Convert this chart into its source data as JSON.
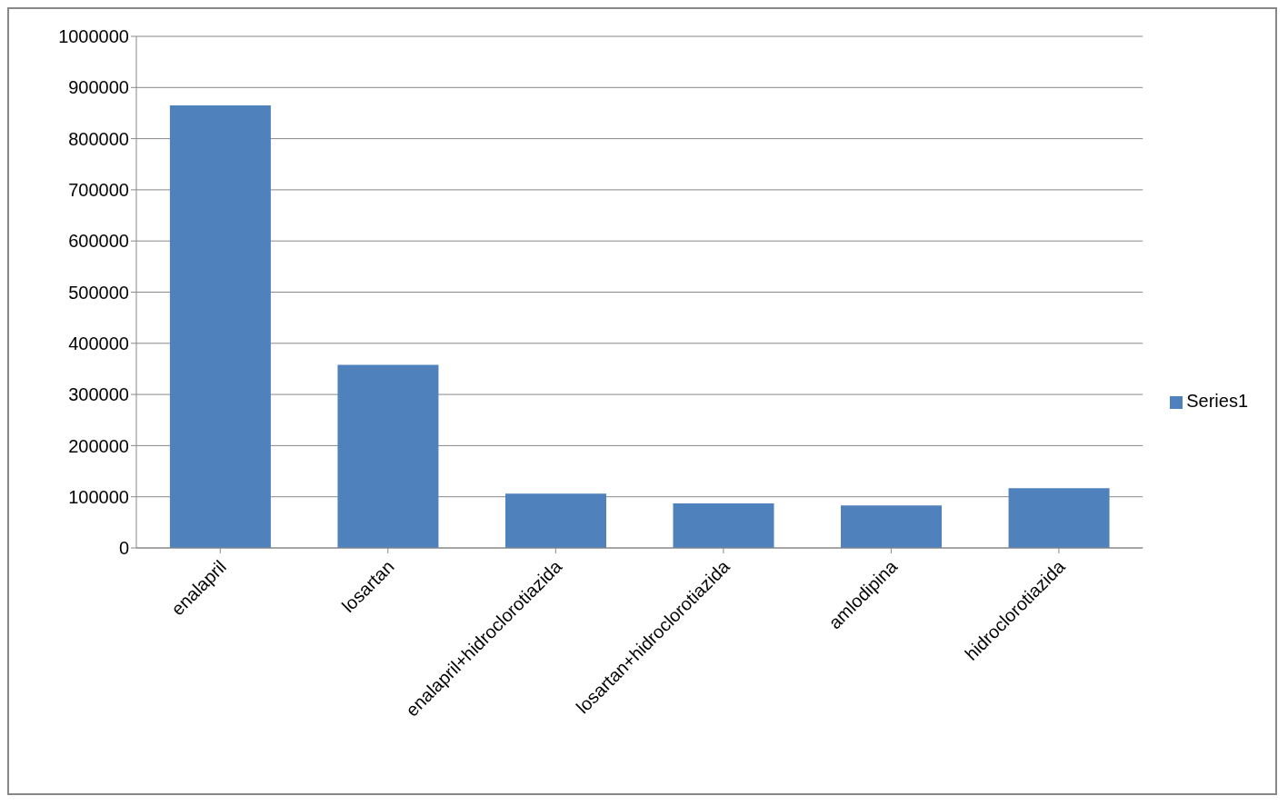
{
  "chart_data": {
    "type": "bar",
    "categories": [
      "enalapril",
      "losartan",
      "enalapril+hidroclorotiazida",
      "losartan+hidroclorotiazida",
      "amlodipina",
      "hidroclorotiazida"
    ],
    "series": [
      {
        "name": "Series1",
        "color": "#4f81bd",
        "values": [
          865000,
          358000,
          106000,
          87000,
          83000,
          117000
        ]
      }
    ],
    "ylim": [
      0,
      1000000
    ],
    "yticks": [
      0,
      100000,
      200000,
      300000,
      400000,
      500000,
      600000,
      700000,
      800000,
      900000,
      1000000
    ],
    "grid": "y",
    "legend": "right"
  }
}
